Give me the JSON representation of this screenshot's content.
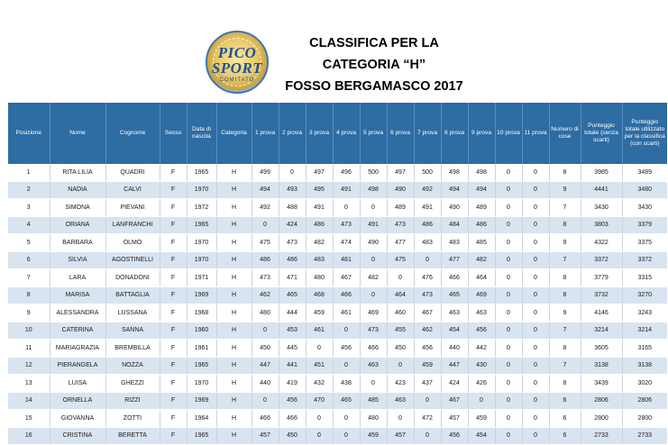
{
  "logo": {
    "line1": "PICO",
    "line2": "SPORT",
    "sub": "COMITATO"
  },
  "title": {
    "line1": "CLASSIFICA PER LA",
    "line2": "CATEGORIA “H”",
    "line3": "FOSSO BERGAMASCO 2017"
  },
  "columns": [
    "Posizione",
    "Nome",
    "Cognome",
    "Sesso",
    "Data di nascita",
    "Categoria",
    "1 prova",
    "2 prova",
    "3 prova",
    "4 prova",
    "5 prova",
    "6 prova",
    "7 prova",
    "8 prova",
    "9 prova",
    "10 prova",
    "11 prova",
    "Numero di cose",
    "Punteggio totale (senza scarti)",
    "Punteggio totale utilizzato per la classifica (con scarti)"
  ],
  "rows": [
    [
      "1",
      "RITA LILIA",
      "QUADRI",
      "F",
      "1965",
      "H",
      "499",
      "0",
      "497",
      "496",
      "500",
      "497",
      "500",
      "498",
      "498",
      "0",
      "0",
      "8",
      "3985",
      "3489"
    ],
    [
      "2",
      "NADIA",
      "CALVI",
      "F",
      "1970",
      "H",
      "494",
      "493",
      "495",
      "491",
      "498",
      "490",
      "492",
      "494",
      "494",
      "0",
      "0",
      "9",
      "4441",
      "3480"
    ],
    [
      "3",
      "SIMONA",
      "PIEVANI",
      "F",
      "1972",
      "H",
      "492",
      "488",
      "491",
      "0",
      "0",
      "489",
      "491",
      "490",
      "489",
      "0",
      "0",
      "7",
      "3430",
      "3430"
    ],
    [
      "4",
      "ORIANA",
      "LANFRANCHI",
      "F",
      "1965",
      "H",
      "0",
      "424",
      "486",
      "473",
      "491",
      "473",
      "486",
      "484",
      "486",
      "0",
      "0",
      "8",
      "3803",
      "3379"
    ],
    [
      "5",
      "BARBARA",
      "OLMO",
      "F",
      "1970",
      "H",
      "475",
      "473",
      "482",
      "474",
      "490",
      "477",
      "483",
      "483",
      "485",
      "0",
      "0",
      "9",
      "4322",
      "3375"
    ],
    [
      "6",
      "SILVIA",
      "AGOSTINELLI",
      "F",
      "1970",
      "H",
      "486",
      "486",
      "483",
      "481",
      "0",
      "475",
      "0",
      "477",
      "482",
      "0",
      "0",
      "7",
      "3372",
      "3372"
    ],
    [
      "7",
      "LARA",
      "DONADONI",
      "F",
      "1971",
      "H",
      "473",
      "471",
      "480",
      "467",
      "482",
      "0",
      "476",
      "466",
      "464",
      "0",
      "0",
      "8",
      "3779",
      "3315"
    ],
    [
      "8",
      "MARISA",
      "BATTAGLIA",
      "F",
      "1969",
      "H",
      "462",
      "465",
      "468",
      "466",
      "0",
      "464",
      "473",
      "465",
      "469",
      "0",
      "0",
      "8",
      "3732",
      "3270"
    ],
    [
      "9",
      "ALESSANDRA",
      "LUSSANA",
      "F",
      "1968",
      "H",
      "480",
      "444",
      "459",
      "461",
      "469",
      "460",
      "467",
      "463",
      "463",
      "0",
      "0",
      "9",
      "4146",
      "3243"
    ],
    [
      "10",
      "CATERINA",
      "SANNA",
      "F",
      "1960",
      "H",
      "0",
      "453",
      "461",
      "0",
      "473",
      "455",
      "462",
      "454",
      "456",
      "0",
      "0",
      "7",
      "3214",
      "3214"
    ],
    [
      "11",
      "MARIAGRAZIA",
      "BREMBILLA",
      "F",
      "1961",
      "H",
      "450",
      "445",
      "0",
      "456",
      "466",
      "450",
      "456",
      "440",
      "442",
      "0",
      "0",
      "8",
      "3605",
      "3165"
    ],
    [
      "12",
      "PIERANGELA",
      "NOZZA",
      "F",
      "1965",
      "H",
      "447",
      "441",
      "451",
      "0",
      "463",
      "0",
      "459",
      "447",
      "430",
      "0",
      "0",
      "7",
      "3138",
      "3138"
    ],
    [
      "13",
      "LUISA",
      "GHEZZI",
      "F",
      "1970",
      "H",
      "440",
      "419",
      "432",
      "438",
      "0",
      "423",
      "437",
      "424",
      "426",
      "0",
      "0",
      "8",
      "3439",
      "3020"
    ],
    [
      "14",
      "ORNELLA",
      "RIZZI",
      "F",
      "1969",
      "H",
      "0",
      "456",
      "470",
      "465",
      "485",
      "463",
      "0",
      "467",
      "0",
      "0",
      "0",
      "6",
      "2806",
      "2806"
    ],
    [
      "15",
      "GIOVANNA",
      "ZOTTI",
      "F",
      "1964",
      "H",
      "466",
      "466",
      "0",
      "0",
      "480",
      "0",
      "472",
      "457",
      "459",
      "0",
      "0",
      "6",
      "2800",
      "2800"
    ],
    [
      "16",
      "CRISTINA",
      "BERETTA",
      "F",
      "1965",
      "H",
      "457",
      "450",
      "0",
      "0",
      "459",
      "457",
      "0",
      "456",
      "454",
      "0",
      "0",
      "6",
      "2733",
      "2733"
    ]
  ]
}
